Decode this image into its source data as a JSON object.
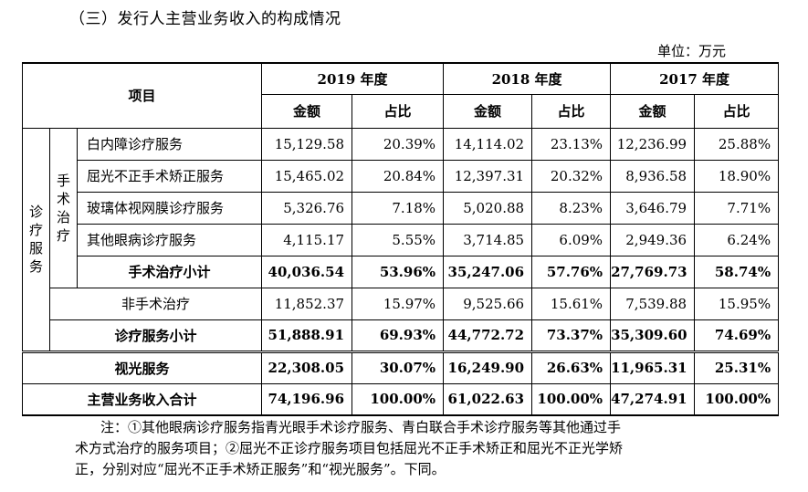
{
  "heading": "（三）发行人主营业务收入的构成情况",
  "unit": "单位：万元",
  "table": {
    "item_header": "项目",
    "years": [
      "2019 年度",
      "2018 年度",
      "2017 年度"
    ],
    "amount_label": "金额",
    "ratio_label": "占比",
    "group_outer": "诊疗服务",
    "group_inner": "手术治疗",
    "surgical_rows": [
      {
        "label": "白内障诊疗服务",
        "values": [
          "15,129.58",
          "20.39%",
          "14,114.02",
          "23.13%",
          "12,236.99",
          "25.88%"
        ]
      },
      {
        "label": "屈光不正手术矫正服务",
        "values": [
          "15,465.02",
          "20.84%",
          "12,397.31",
          "20.32%",
          "8,936.58",
          "18.90%"
        ]
      },
      {
        "label": "玻璃体视网膜诊疗服务",
        "values": [
          "5,326.76",
          "7.18%",
          "5,020.88",
          "8.23%",
          "3,646.79",
          "7.71%"
        ]
      },
      {
        "label": "其他眼病诊疗服务",
        "values": [
          "4,115.17",
          "5.55%",
          "3,714.85",
          "6.09%",
          "2,949.36",
          "6.24%"
        ]
      }
    ],
    "surgical_subtotal": {
      "label": "手术治疗小计",
      "values": [
        "40,036.54",
        "53.96%",
        "35,247.06",
        "57.76%",
        "27,769.73",
        "58.74%"
      ]
    },
    "non_surgical": {
      "label": "非手术治疗",
      "values": [
        "11,852.37",
        "15.97%",
        "9,525.66",
        "15.61%",
        "7,539.88",
        "15.95%"
      ]
    },
    "service_subtotal": {
      "label": "诊疗服务小计",
      "values": [
        "51,888.91",
        "69.93%",
        "44,772.72",
        "73.37%",
        "35,309.60",
        "74.69%"
      ]
    },
    "optical": {
      "label": "视光服务",
      "values": [
        "22,308.05",
        "30.07%",
        "16,249.90",
        "26.63%",
        "11,965.31",
        "25.31%"
      ]
    },
    "total": {
      "label": "主营业务收入合计",
      "values": [
        "74,196.96",
        "100.00%",
        "61,022.63",
        "100.00%",
        "47,274.91",
        "100.00%"
      ]
    }
  },
  "note": {
    "line1": "注：①其他眼病诊疗服务指青光眼手术诊疗服务、青白联合手术诊疗服务等其他通过手",
    "line2": "术方式治疗的服务项目；②屈光不正诊疗服务项目包括屈光不正手术矫正和屈光不正光学矫",
    "line3": "正，分别对应“屈光不正手术矫正服务”和“视光服务”。下同。"
  }
}
